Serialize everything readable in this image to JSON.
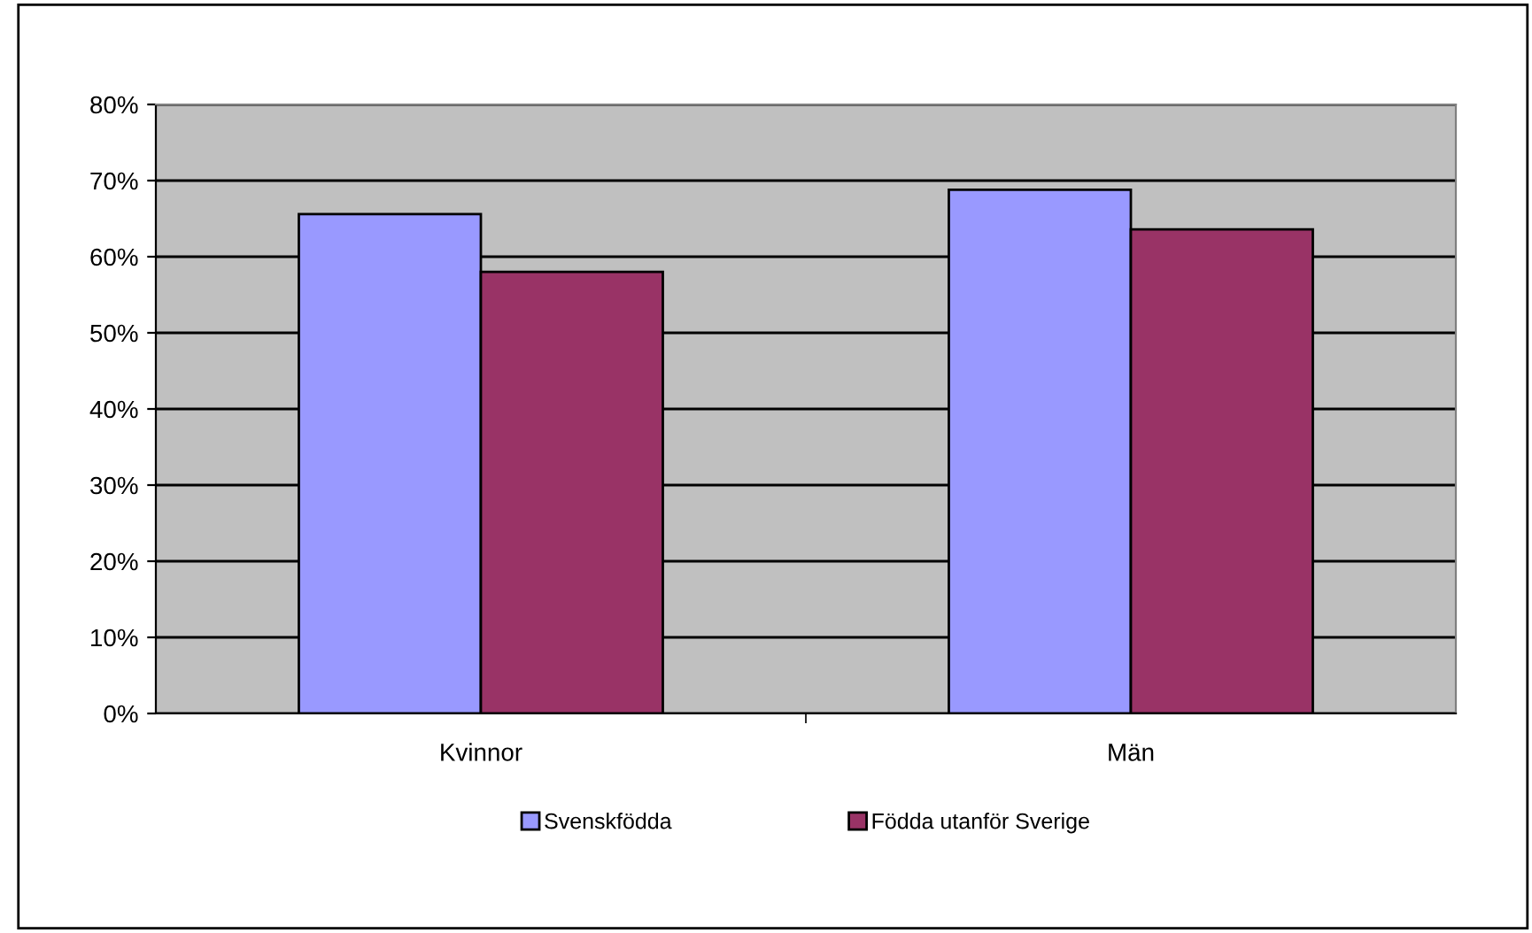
{
  "chart_data": {
    "type": "bar",
    "categories": [
      "Kvinnor",
      "Män"
    ],
    "series": [
      {
        "name": "Svenskfödda",
        "color": "#9999ff",
        "values": [
          65.6,
          68.8
        ]
      },
      {
        "name": "Födda utanför Sverige",
        "color": "#993366",
        "values": [
          58,
          63.6
        ]
      }
    ],
    "ylim": [
      0,
      80
    ],
    "yticks": [
      {
        "value": 0,
        "label": "0%"
      },
      {
        "value": 10,
        "label": "10%"
      },
      {
        "value": 20,
        "label": "20%"
      },
      {
        "value": 30,
        "label": "30%"
      },
      {
        "value": 40,
        "label": "40%"
      },
      {
        "value": 50,
        "label": "50%"
      },
      {
        "value": 60,
        "label": "60%"
      },
      {
        "value": 70,
        "label": "70%"
      },
      {
        "value": 80,
        "label": "80%"
      }
    ],
    "grid": "y",
    "legend": "bottom"
  }
}
